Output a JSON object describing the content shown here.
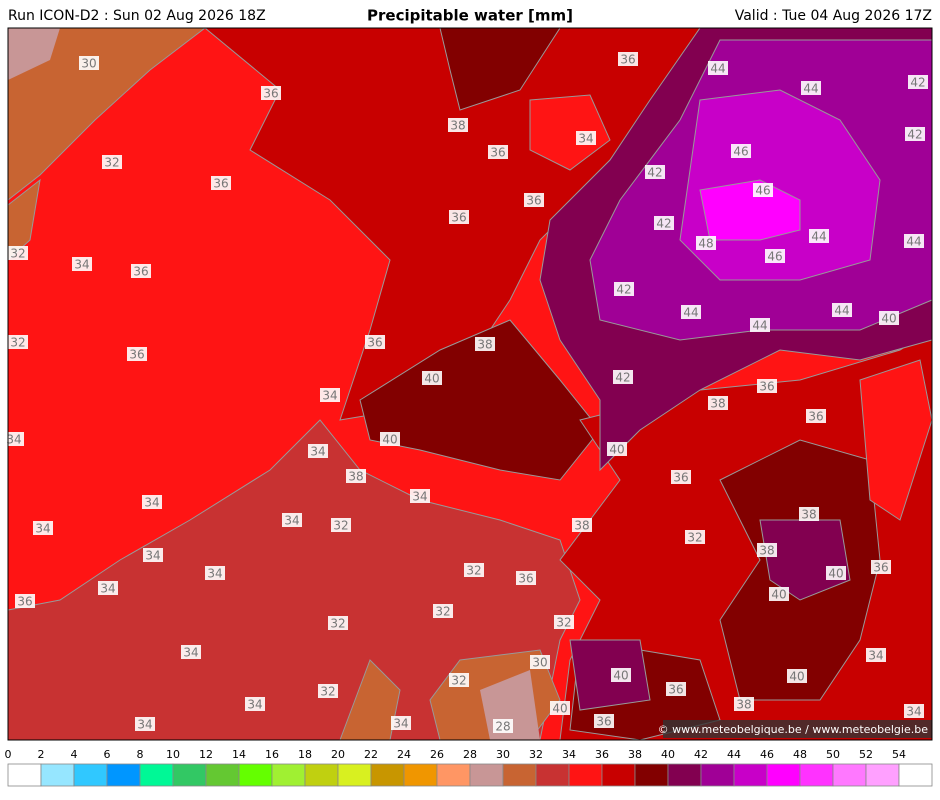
{
  "header": {
    "run": "Run ICON-D2 : Sun 02 Aug 2026 18Z",
    "title": "Precipitable water [mm]",
    "valid": "Valid : Tue 04 Aug 2026 17Z"
  },
  "map": {
    "contour_labels": [
      "30",
      "36",
      "32",
      "36",
      "38",
      "36",
      "34",
      "36",
      "44",
      "44",
      "42",
      "42",
      "46",
      "42",
      "46",
      "36",
      "36",
      "42",
      "48",
      "44",
      "44",
      "46",
      "32",
      "34",
      "36",
      "42",
      "44",
      "44",
      "44",
      "40",
      "32",
      "36",
      "36",
      "38",
      "40",
      "42",
      "36",
      "38",
      "36",
      "34",
      "34",
      "40",
      "34",
      "40",
      "38",
      "36",
      "34",
      "34",
      "38",
      "34",
      "34",
      "32",
      "38",
      "32",
      "38",
      "34",
      "32",
      "36",
      "40",
      "36",
      "34",
      "34",
      "40",
      "36",
      "32",
      "32",
      "32",
      "34",
      "34",
      "30",
      "40",
      "32",
      "36",
      "40",
      "32",
      "38",
      "34",
      "40",
      "36",
      "34",
      "34",
      "28",
      "34"
    ],
    "copyright": "© www.meteobelgique.be / www.meteobelgie.be"
  },
  "colorbar": {
    "ticks": [
      0,
      2,
      4,
      6,
      8,
      10,
      12,
      14,
      16,
      18,
      20,
      22,
      24,
      26,
      28,
      30,
      32,
      34,
      36,
      38,
      40,
      42,
      44,
      46,
      48,
      50,
      52,
      54
    ],
    "colors": [
      "#ffffff",
      "#96e6ff",
      "#30c8ff",
      "#0096ff",
      "#00f896",
      "#32c864",
      "#64c832",
      "#64ff00",
      "#a0f032",
      "#c0d010",
      "#d8f020",
      "#c89600",
      "#f09600",
      "#ff9664",
      "#c89696",
      "#c86432",
      "#c83232",
      "#ff1414",
      "#c80000",
      "#820000",
      "#820050",
      "#a00096",
      "#c800c8",
      "#ff00ff",
      "#ff32ff",
      "#ff78ff",
      "#ffa0ff",
      "#ffffff"
    ]
  }
}
